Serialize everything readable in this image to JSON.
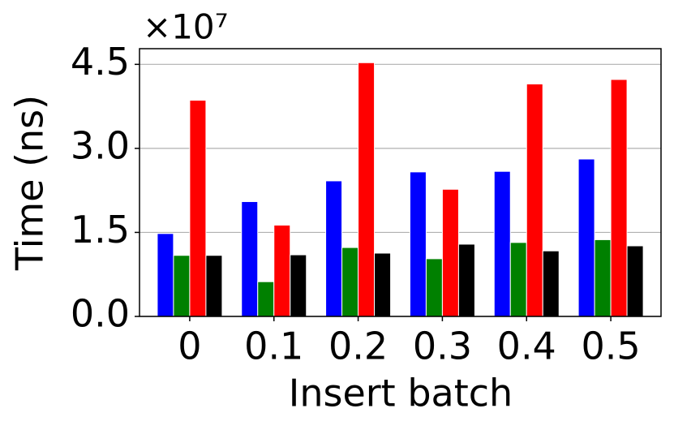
{
  "chart_data": {
    "type": "bar",
    "y_multiplier": "×10⁷",
    "xlabel": "Insert batch",
    "ylabel": "Time (ns)",
    "categories": [
      "0",
      "0.1",
      "0.2",
      "0.3",
      "0.4",
      "0.5"
    ],
    "series": [
      {
        "color": "#0000ff",
        "values": [
          1.48,
          2.05,
          2.42,
          2.58,
          2.59,
          2.81
        ]
      },
      {
        "color": "#008000",
        "values": [
          1.09,
          0.62,
          1.23,
          1.03,
          1.32,
          1.37
        ]
      },
      {
        "color": "#ff0000",
        "values": [
          3.86,
          1.63,
          4.53,
          2.27,
          4.15,
          4.23
        ]
      },
      {
        "color": "#000000",
        "values": [
          1.09,
          1.1,
          1.13,
          1.29,
          1.17,
          1.26
        ]
      }
    ],
    "ylim": [
      0,
      4.78
    ],
    "yticks": [
      {
        "value": 0,
        "label": "0.0"
      },
      {
        "value": 1.5,
        "label": "1.5"
      },
      {
        "value": 3,
        "label": "3.0"
      },
      {
        "value": 4.5,
        "label": "4.5"
      }
    ],
    "grid": true
  }
}
